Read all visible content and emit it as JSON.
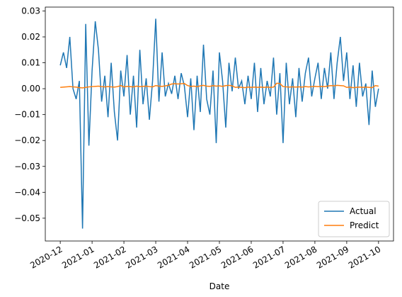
{
  "chart_data": {
    "type": "line",
    "xlabel": "Date",
    "x": [
      0,
      0.1,
      0.2,
      0.3,
      0.4,
      0.5,
      0.6,
      0.7,
      0.8,
      0.9,
      1,
      1.1,
      1.2,
      1.3,
      1.4,
      1.5,
      1.6,
      1.7,
      1.8,
      1.9,
      2,
      2.1,
      2.2,
      2.3,
      2.4,
      2.5,
      2.6,
      2.7,
      2.8,
      2.9,
      3,
      3.1,
      3.2,
      3.3,
      3.4,
      3.5,
      3.6,
      3.7,
      3.8,
      3.9,
      4,
      4.1,
      4.2,
      4.3,
      4.4,
      4.5,
      4.6,
      4.7,
      4.8,
      4.9,
      5,
      5.1,
      5.2,
      5.3,
      5.4,
      5.5,
      5.6,
      5.7,
      5.8,
      5.9,
      6,
      6.1,
      6.2,
      6.3,
      6.4,
      6.5,
      6.6,
      6.7,
      6.8,
      6.9,
      7,
      7.1,
      7.2,
      7.3,
      7.4,
      7.5,
      7.6,
      7.7,
      7.8,
      7.9,
      8,
      8.1,
      8.2,
      8.3,
      8.4,
      8.5,
      8.6,
      8.7,
      8.8,
      8.9,
      9,
      9.1,
      9.2,
      9.3,
      9.4,
      9.5,
      9.6,
      9.7,
      9.8,
      9.9,
      10
    ],
    "series": [
      {
        "name": "Actual",
        "color": "#1f77b4",
        "values": [
          0.009,
          0.014,
          0.008,
          0.02,
          0,
          -0.004,
          0.003,
          -0.054,
          0.025,
          -0.022,
          0.007,
          0.026,
          0.015,
          -0.005,
          0.005,
          -0.011,
          0.01,
          -0.009,
          -0.02,
          0.007,
          -0.003,
          0.013,
          -0.01,
          0.005,
          -0.015,
          0.015,
          -0.006,
          0.004,
          -0.012,
          0.003,
          0.027,
          -0.005,
          0.014,
          -0.003,
          0.002,
          -0.002,
          0.005,
          -0.004,
          0.006,
          0.001,
          -0.011,
          0.004,
          -0.016,
          0.005,
          -0.009,
          0.017,
          -0.004,
          -0.01,
          0.007,
          -0.021,
          0.014,
          0.003,
          -0.015,
          0.01,
          -0.001,
          0.012,
          0,
          0.003,
          -0.006,
          0.005,
          -0.004,
          0.01,
          -0.009,
          0.008,
          -0.006,
          0.003,
          -0.003,
          0.012,
          -0.01,
          0.006,
          -0.021,
          0.01,
          -0.006,
          0.004,
          -0.011,
          0.008,
          -0.005,
          0.006,
          0.012,
          -0.003,
          0.004,
          0.01,
          -0.004,
          0.008,
          0,
          0.014,
          -0.004,
          0.01,
          0.02,
          0.003,
          0.014,
          -0.004,
          0.009,
          -0.007,
          0.01,
          -0.003,
          0.002,
          -0.014,
          0.007,
          -0.007,
          0
        ]
      },
      {
        "name": "Predict",
        "color": "#ff7f0e",
        "values": [
          0.0005,
          0.0006,
          0.0007,
          0.0008,
          0.0007,
          0.0006,
          0.0004,
          0.0003,
          0.0005,
          0.0007,
          0.0008,
          0.0009,
          0.001,
          0.0008,
          0.0007,
          0.0008,
          0.0007,
          0.0006,
          0.0008,
          0.0012,
          0.0007,
          0.0009,
          0.0008,
          0.0007,
          0.001,
          0.0008,
          0.0009,
          0.001,
          0.0008,
          0.0007,
          0.0012,
          0.001,
          0.0009,
          0.0011,
          0.0013,
          0.0018,
          0.0019,
          0.0018,
          0.0019,
          0.002,
          0.0012,
          0.0009,
          0.001,
          0.0008,
          0.0011,
          0.0013,
          0.001,
          0.0009,
          0.0012,
          0.001,
          0.0011,
          0.0009,
          0.0012,
          0.0013,
          0.0011,
          0.0005,
          0.0006,
          0.0005,
          0.0004,
          0.0006,
          0.0005,
          0.0006,
          0.0005,
          0.0006,
          0.0005,
          0.0006,
          0.0005,
          0.0006,
          0.0021,
          0.002,
          0.0008,
          0.0007,
          0.0006,
          0.0007,
          0.0006,
          0.0007,
          0.0006,
          0.0008,
          0.0007,
          0.0008,
          0.0009,
          0.0008,
          0.0009,
          0.0008,
          0.001,
          0.0012,
          0.0011,
          0.0013,
          0.0012,
          0.0011,
          0.0005,
          0.0006,
          0.0004,
          0.0005,
          0.0006,
          0.0005,
          0.0006,
          0.0005,
          0.0004,
          0.0012,
          0.001
        ]
      }
    ],
    "xlim": [
      -0.47,
      10.47
    ],
    "xticks": [
      {
        "value": 0,
        "label": "2020-12"
      },
      {
        "value": 1,
        "label": "2021-01"
      },
      {
        "value": 2,
        "label": "2021-02"
      },
      {
        "value": 3,
        "label": "2021-03"
      },
      {
        "value": 4,
        "label": "2021-04"
      },
      {
        "value": 5,
        "label": "2021-05"
      },
      {
        "value": 6,
        "label": "2021-06"
      },
      {
        "value": 7,
        "label": "2021-07"
      },
      {
        "value": 8,
        "label": "2021-08"
      },
      {
        "value": 9,
        "label": "2021-09"
      },
      {
        "value": 10,
        "label": "2021-10"
      }
    ],
    "ylim": [
      -0.0588,
      0.0315
    ],
    "yticks": [
      {
        "value": -0.05,
        "label": "−0.05"
      },
      {
        "value": -0.04,
        "label": "−0.04"
      },
      {
        "value": -0.03,
        "label": "−0.03"
      },
      {
        "value": -0.02,
        "label": "−0.02"
      },
      {
        "value": -0.01,
        "label": "−0.01"
      },
      {
        "value": 0,
        "label": "0.00"
      },
      0.01,
      0.02,
      0.03
    ],
    "legend": "lower right"
  }
}
